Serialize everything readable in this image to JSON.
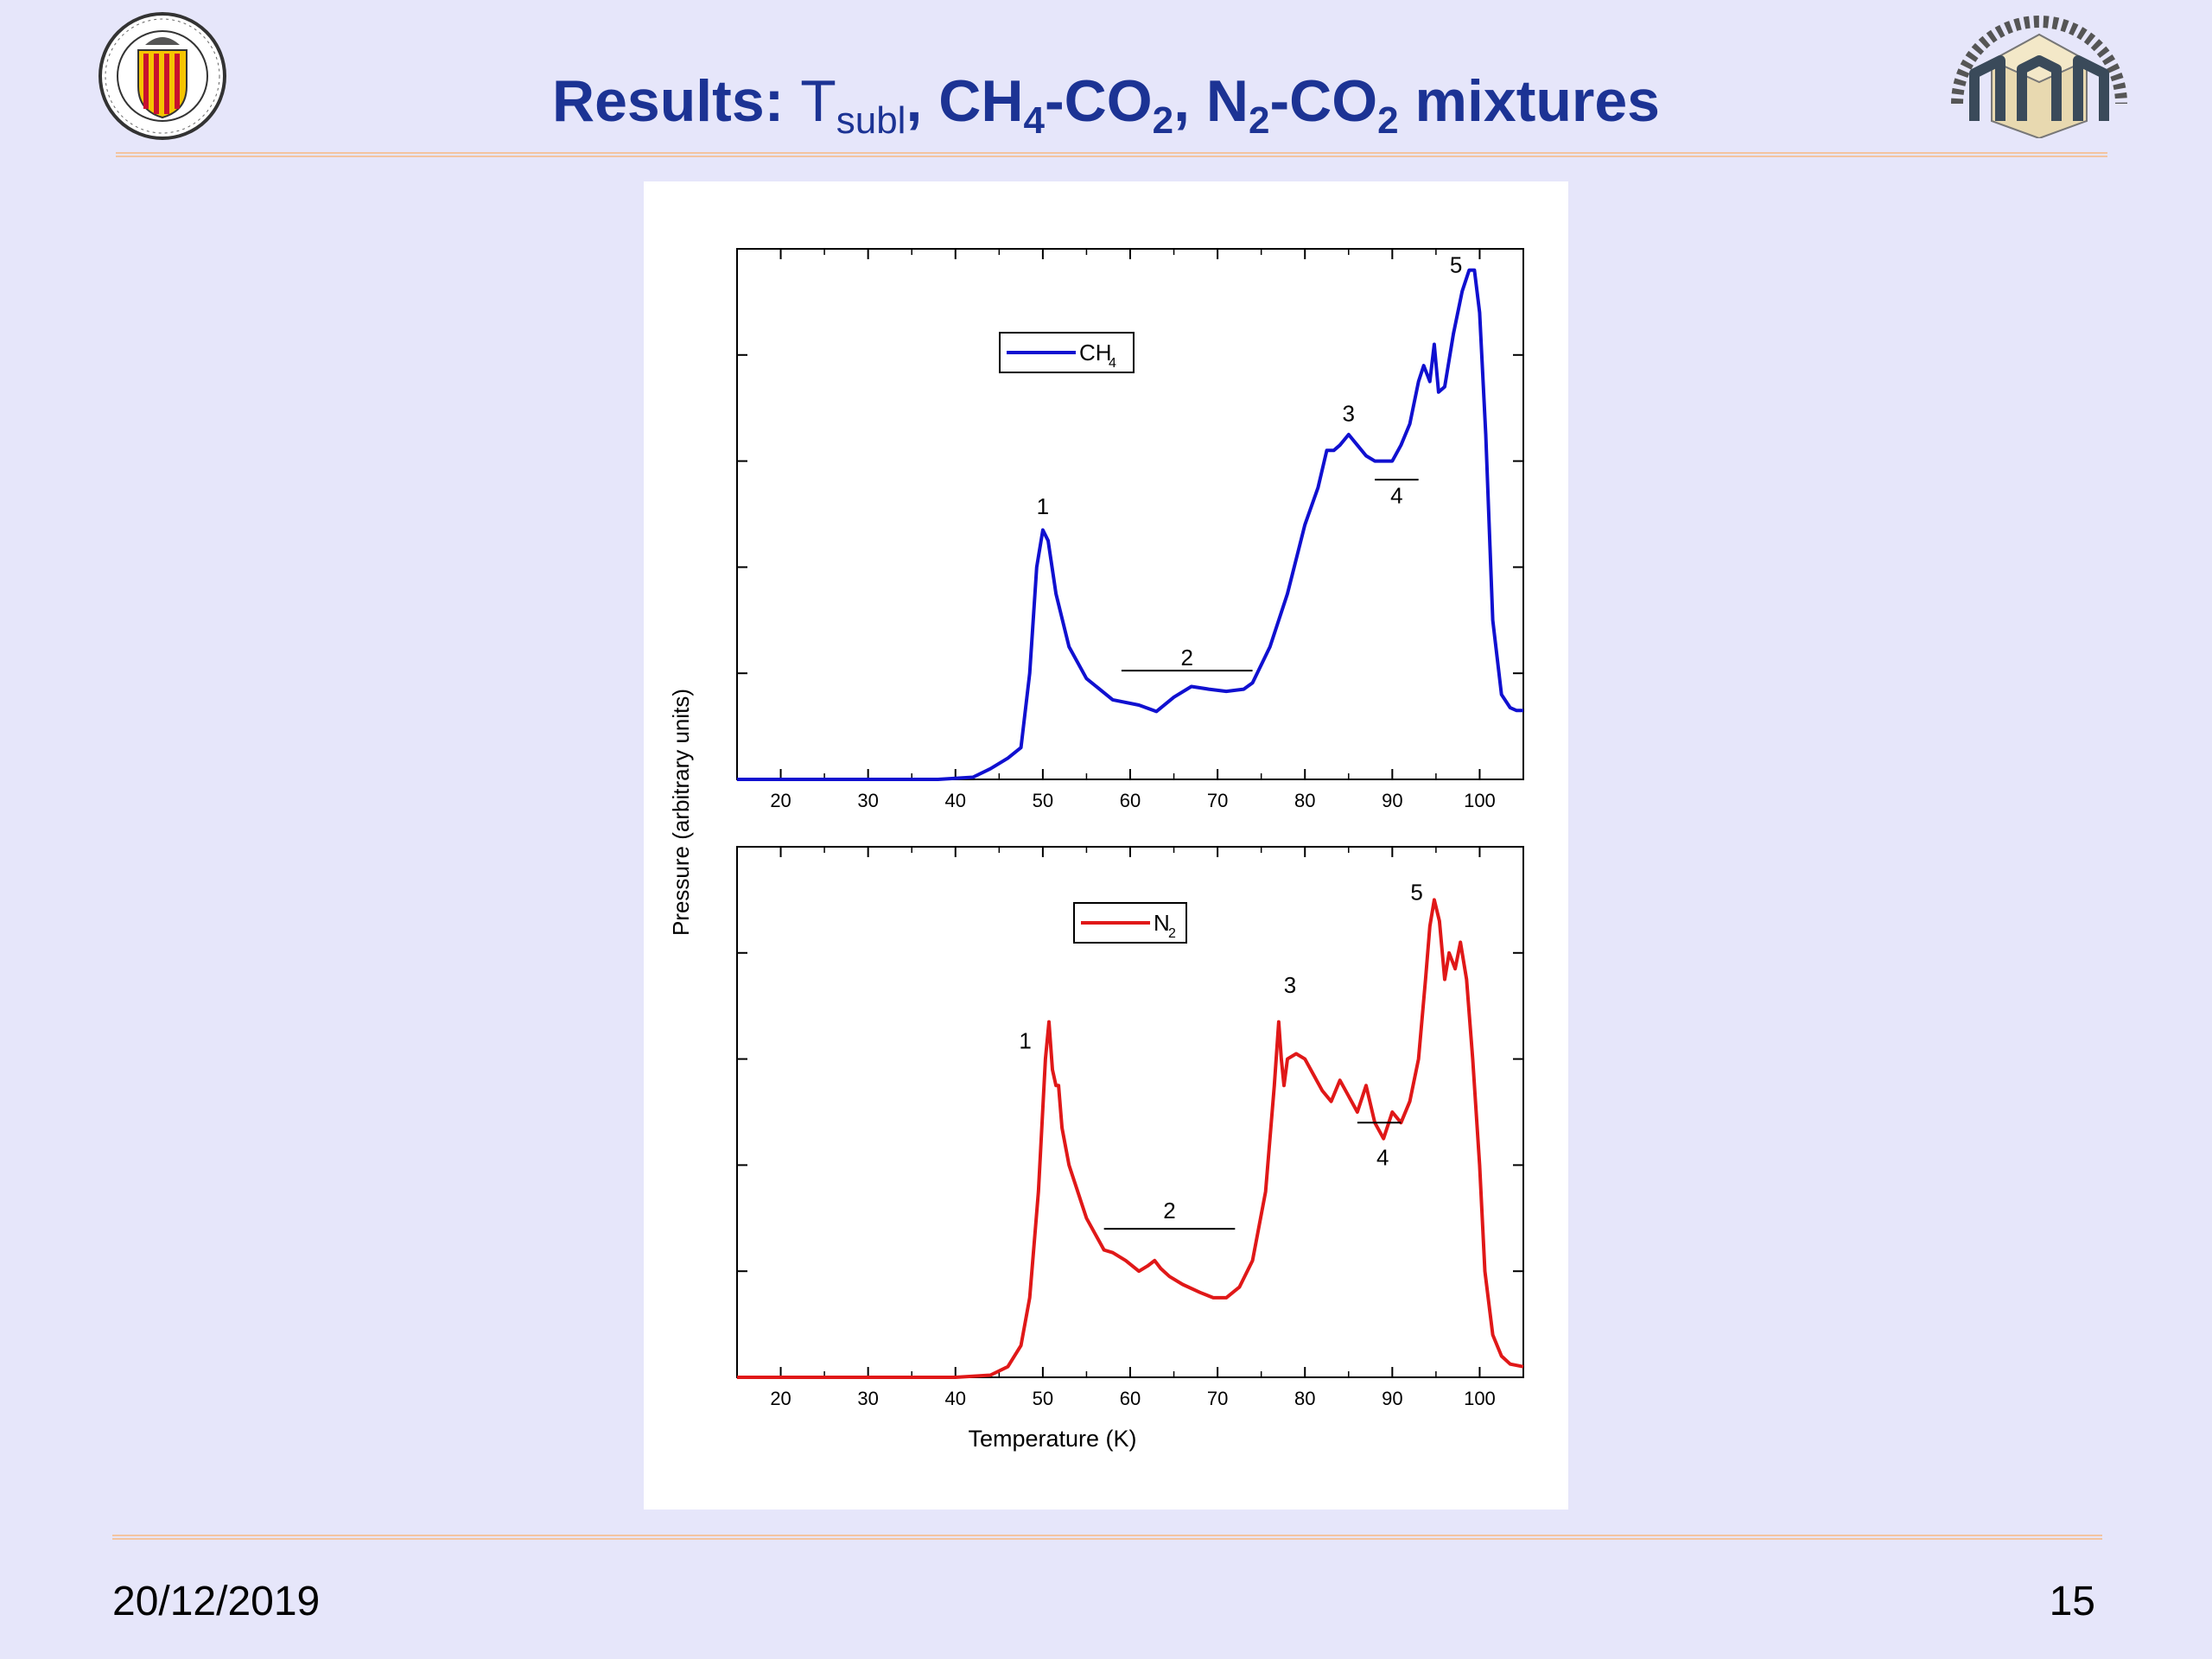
{
  "slide": {
    "title_prefix": "Results: ",
    "title_t": "T",
    "title_t_sub": "subl",
    "title_sep1": ", ",
    "title_ch": "CH",
    "title_ch_sub": "4",
    "title_dash1": "-CO",
    "title_co_sub1": "2",
    "title_sep2": ", ",
    "title_n": "N",
    "title_n_sub": "2",
    "title_dash2": "-CO",
    "title_co_sub2": "2",
    "title_suffix": " mixtures",
    "date": "20/12/2019",
    "page": "15"
  },
  "colors": {
    "title": "#1c3394",
    "background": "#e6e6fa",
    "ch4_line": "#1010d0",
    "n2_line": "#e01818"
  },
  "chart_data": [
    {
      "type": "line",
      "panel": "top",
      "xlabel": "",
      "ylabel": "Pressure (arbitrary units)",
      "xlim": [
        15,
        105
      ],
      "ylim": [
        0,
        1
      ],
      "xticks": [
        20,
        30,
        40,
        50,
        60,
        70,
        80,
        90,
        100
      ],
      "grid": false,
      "legend_position": "top-center",
      "series": [
        {
          "name": "CH",
          "name_sub": "4",
          "color": "#1010d0",
          "x": [
            15,
            38,
            42,
            44,
            46,
            47.5,
            48.5,
            49.3,
            50,
            50.6,
            51.5,
            53,
            55,
            58,
            61,
            63,
            65,
            67,
            69,
            71,
            73,
            74,
            76,
            78,
            80,
            81.5,
            82.5,
            83.3,
            84,
            85,
            86,
            87,
            88,
            89,
            90,
            91,
            92,
            93,
            93.6,
            94.3,
            94.8,
            95.3,
            96,
            97,
            98,
            98.8,
            99.4,
            100,
            100.7,
            101.5,
            102.5,
            103.5,
            104.2,
            105
          ],
          "y": [
            0,
            0,
            0.004,
            0.02,
            0.04,
            0.06,
            0.2,
            0.4,
            0.47,
            0.45,
            0.35,
            0.25,
            0.19,
            0.15,
            0.14,
            0.128,
            0.155,
            0.175,
            0.17,
            0.166,
            0.17,
            0.182,
            0.25,
            0.35,
            0.48,
            0.55,
            0.62,
            0.62,
            0.63,
            0.65,
            0.63,
            0.61,
            0.6,
            0.6,
            0.6,
            0.63,
            0.67,
            0.75,
            0.78,
            0.75,
            0.82,
            0.73,
            0.74,
            0.84,
            0.92,
            0.96,
            0.96,
            0.88,
            0.65,
            0.3,
            0.16,
            0.135,
            0.13,
            0.13
          ]
        }
      ],
      "annotations": [
        {
          "text": "1",
          "x": 50,
          "y": 0.5,
          "type": "label"
        },
        {
          "text": "2",
          "x": 66.5,
          "y": 0.215,
          "type": "label",
          "bar_from": 59,
          "bar_to": 74,
          "bar_y": 0.205
        },
        {
          "text": "3",
          "x": 85,
          "y": 0.675,
          "type": "label"
        },
        {
          "text": "4",
          "x": 90.5,
          "y": 0.52,
          "type": "label",
          "bar_from": 88,
          "bar_to": 93,
          "bar_y": 0.565
        },
        {
          "text": "5",
          "x": 97.3,
          "y": 0.955,
          "type": "label"
        }
      ]
    },
    {
      "type": "line",
      "panel": "bottom",
      "xlabel": "Temperature (K)",
      "ylabel": "",
      "xlim": [
        15,
        105
      ],
      "ylim": [
        0,
        1
      ],
      "xticks": [
        20,
        30,
        40,
        50,
        60,
        70,
        80,
        90,
        100
      ],
      "grid": false,
      "legend_position": "top-center",
      "series": [
        {
          "name": "N",
          "name_sub": "2",
          "color": "#e01818",
          "x": [
            15,
            40,
            44,
            46,
            47.5,
            48.5,
            49.5,
            50.3,
            50.7,
            51.1,
            51.5,
            51.8,
            52.2,
            53,
            55,
            57,
            58,
            59.5,
            61,
            62,
            62.8,
            63.5,
            64.5,
            66,
            68,
            69.5,
            71,
            72.5,
            74,
            75.5,
            76.5,
            77,
            77.3,
            77.6,
            78,
            79,
            80,
            81,
            82,
            83,
            84,
            85,
            86,
            87,
            88,
            89,
            90,
            91,
            92,
            93,
            93.8,
            94.3,
            94.8,
            95.4,
            96,
            96.5,
            97.2,
            97.8,
            98.5,
            99.2,
            100,
            100.6,
            101.5,
            102.5,
            103.5,
            105
          ],
          "y": [
            0,
            0,
            0.004,
            0.02,
            0.06,
            0.15,
            0.35,
            0.6,
            0.67,
            0.58,
            0.55,
            0.55,
            0.47,
            0.4,
            0.3,
            0.24,
            0.235,
            0.22,
            0.2,
            0.21,
            0.22,
            0.205,
            0.19,
            0.175,
            0.16,
            0.15,
            0.15,
            0.17,
            0.22,
            0.35,
            0.55,
            0.67,
            0.6,
            0.55,
            0.6,
            0.61,
            0.6,
            0.57,
            0.54,
            0.52,
            0.56,
            0.53,
            0.5,
            0.55,
            0.48,
            0.45,
            0.5,
            0.48,
            0.52,
            0.6,
            0.75,
            0.85,
            0.9,
            0.86,
            0.75,
            0.8,
            0.77,
            0.82,
            0.75,
            0.6,
            0.4,
            0.2,
            0.08,
            0.04,
            0.025,
            0.02
          ]
        }
      ],
      "annotations": [
        {
          "text": "1",
          "x": 48,
          "y": 0.62,
          "type": "label"
        },
        {
          "text": "2",
          "x": 64.5,
          "y": 0.3,
          "type": "label",
          "bar_from": 57,
          "bar_to": 72,
          "bar_y": 0.28
        },
        {
          "text": "3",
          "x": 78.3,
          "y": 0.725,
          "type": "label"
        },
        {
          "text": "4",
          "x": 88.9,
          "y": 0.4,
          "type": "label",
          "bar_from": 86,
          "bar_to": 91,
          "bar_y": 0.48
        },
        {
          "text": "5",
          "x": 92.8,
          "y": 0.9,
          "type": "label"
        }
      ]
    }
  ]
}
